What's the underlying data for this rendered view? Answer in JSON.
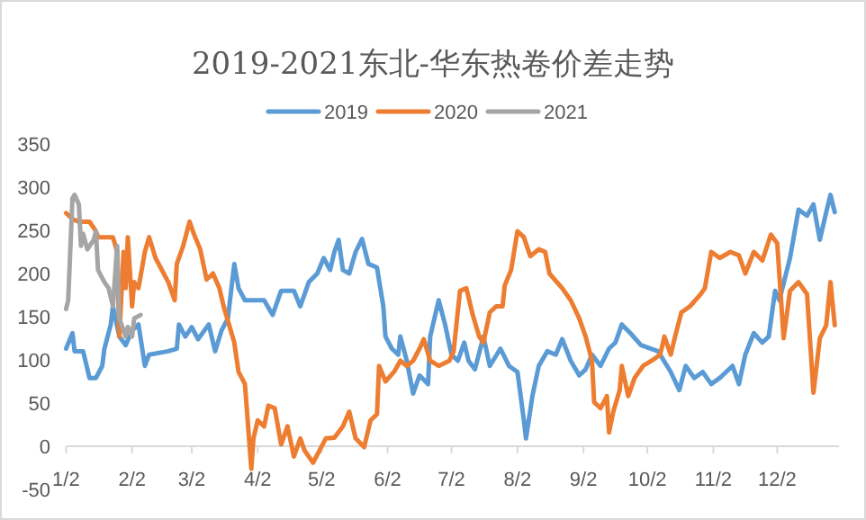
{
  "chart_data": {
    "type": "line",
    "title": "2019-2021东北-华东热卷价差走势",
    "legend": "top",
    "grid": false,
    "marker": "none",
    "line_style": "solid",
    "xlim": [
      "--01-02",
      "--12-31"
    ],
    "xticks": [
      {
        "value": "--01-02",
        "label": "1/2"
      },
      {
        "value": "--02-02",
        "label": "2/2"
      },
      {
        "value": "--03-02",
        "label": "3/2"
      },
      {
        "value": "--04-02",
        "label": "4/2"
      },
      {
        "value": "--05-02",
        "label": "5/2"
      },
      {
        "value": "--06-02",
        "label": "6/2"
      },
      {
        "value": "--07-02",
        "label": "7/2"
      },
      {
        "value": "--08-02",
        "label": "8/2"
      },
      {
        "value": "--09-02",
        "label": "9/2"
      },
      {
        "value": "--10-02",
        "label": "10/2"
      },
      {
        "value": "--11-02",
        "label": "11/2"
      },
      {
        "value": "--12-02",
        "label": "12/2"
      }
    ],
    "ylim": [
      -50,
      350
    ],
    "yticks": [
      -50,
      0,
      50,
      100,
      150,
      200,
      250,
      300,
      350
    ],
    "series": [
      {
        "name": "2019",
        "color": "#5b9bd5",
        "x": [
          "--01-02",
          "--01-05",
          "--01-06",
          "--01-10",
          "--01-13",
          "--01-16",
          "--01-19",
          "--01-20",
          "--01-23",
          "--01-24",
          "--01-27",
          "--01-30",
          "--02-02",
          "--02-05",
          "--02-08",
          "--02-10",
          "--02-19",
          "--02-23",
          "--02-24",
          "--02-27",
          "--03-02",
          "--03-05",
          "--03-10",
          "--03-13",
          "--03-16",
          "--03-19",
          "--03-22",
          "--03-24",
          "--03-27",
          "--04-05",
          "--04-09",
          "--04-13",
          "--04-19",
          "--04-22",
          "--04-26",
          "--04-30",
          "--05-03",
          "--05-06",
          "--05-08",
          "--05-10",
          "--05-12",
          "--05-15",
          "--05-18",
          "--05-21",
          "--05-24",
          "--05-28",
          "--05-31",
          "--06-01",
          "--06-04",
          "--06-07",
          "--06-08",
          "--06-11",
          "--06-14",
          "--06-17",
          "--06-21",
          "--06-22",
          "--06-26",
          "--06-29",
          "--07-02",
          "--07-05",
          "--07-08",
          "--07-10",
          "--07-13",
          "--07-17",
          "--07-20",
          "--07-25",
          "--07-29",
          "--08-02",
          "--08-05",
          "--08-06",
          "--08-09",
          "--08-12",
          "--08-16",
          "--08-20",
          "--08-23",
          "--08-27",
          "--08-31",
          "--09-03",
          "--09-06",
          "--09-10",
          "--09-14",
          "--09-17",
          "--09-20",
          "--09-24",
          "--09-29",
          "--10-07",
          "--10-13",
          "--10-17",
          "--10-20",
          "--10-24",
          "--10-28",
          "--11-01",
          "--11-05",
          "--11-11",
          "--11-14",
          "--11-17",
          "--11-21",
          "--11-25",
          "--11-28",
          "--12-01",
          "--12-03",
          "--12-08",
          "--12-12",
          "--12-16",
          "--12-19",
          "--12-22",
          "--12-25",
          "--12-27",
          "--12-29"
        ],
        "values": [
          113,
          131,
          110,
          110,
          79,
          79,
          93,
          113,
          141,
          162,
          127,
          117,
          134,
          141,
          93,
          106,
          110,
          113,
          141,
          127,
          138,
          124,
          141,
          110,
          134,
          148,
          211,
          183,
          169,
          169,
          152,
          180,
          180,
          162,
          190,
          200,
          218,
          204,
          225,
          239,
          204,
          200,
          225,
          240,
          211,
          207,
          162,
          127,
          113,
          106,
          127,
          99,
          61,
          82,
          72,
          127,
          169,
          141,
          106,
          99,
          120,
          99,
          89,
          127,
          93,
          113,
          93,
          86,
          30,
          9,
          58,
          93,
          110,
          106,
          124,
          99,
          82,
          89,
          106,
          93,
          113,
          120,
          141,
          131,
          117,
          110,
          86,
          65,
          93,
          79,
          86,
          72,
          79,
          93,
          72,
          106,
          131,
          120,
          127,
          180,
          169,
          218,
          274,
          267,
          280,
          239,
          271,
          291,
          271
        ]
      },
      {
        "name": "2020",
        "color": "#ed7d31",
        "x": [
          "--01-02",
          "--01-05",
          "--01-08",
          "--01-13",
          "--01-16",
          "--01-17",
          "--01-24",
          "--01-26",
          "--01-27",
          "--01-29",
          "--01-30",
          "--01-31",
          "--02-02",
          "--02-03",
          "--02-05",
          "--02-08",
          "--02-10",
          "--02-13",
          "--02-19",
          "--02-22",
          "--02-23",
          "--02-26",
          "--03-01",
          "--03-03",
          "--03-06",
          "--03-09",
          "--03-12",
          "--03-15",
          "--03-17",
          "--03-22",
          "--03-24",
          "--03-27",
          "--03-30",
          "--03-31",
          "--04-02",
          "--04-05",
          "--04-07",
          "--04-10",
          "--04-13",
          "--04-16",
          "--04-19",
          "--04-22",
          "--04-24",
          "--04-28",
          "--05-01",
          "--05-04",
          "--05-08",
          "--05-12",
          "--05-15",
          "--05-18",
          "--05-22",
          "--05-25",
          "--05-28",
          "--05-29",
          "--06-01",
          "--06-05",
          "--06-08",
          "--06-11",
          "--06-14",
          "--06-17",
          "--06-19",
          "--06-22",
          "--06-26",
          "--07-01",
          "--07-03",
          "--07-06",
          "--07-09",
          "--07-12",
          "--07-15",
          "--07-17",
          "--07-20",
          "--07-23",
          "--07-26",
          "--07-27",
          "--07-30",
          "--08-02",
          "--08-05",
          "--08-08",
          "--08-12",
          "--08-15",
          "--08-17",
          "--08-23",
          "--08-27",
          "--08-31",
          "--09-03",
          "--09-06",
          "--09-07",
          "--09-10",
          "--09-13",
          "--09-14",
          "--09-16",
          "--09-19",
          "--09-20",
          "--09-23",
          "--09-26",
          "--09-30",
          "--10-04",
          "--10-08",
          "--10-10",
          "--10-13",
          "--10-15",
          "--10-18",
          "--10-22",
          "--10-27",
          "--10-29",
          "--11-01",
          "--11-05",
          "--11-10",
          "--11-14",
          "--11-17",
          "--11-21",
          "--11-25",
          "--11-29",
          "--12-02",
          "--12-05",
          "--12-08",
          "--12-12",
          "--12-16",
          "--12-19",
          "--12-22",
          "--12-25",
          "--12-27",
          "--12-29"
        ],
        "values": [
          270,
          263,
          260,
          260,
          249,
          242,
          242,
          225,
          127,
          225,
          183,
          242,
          162,
          190,
          183,
          225,
          242,
          218,
          190,
          169,
          211,
          232,
          260,
          246,
          228,
          193,
          200,
          183,
          162,
          120,
          86,
          72,
          -26,
          9,
          30,
          23,
          47,
          44,
          2,
          23,
          -12,
          9,
          -5,
          -19,
          -5,
          9,
          10,
          23,
          40,
          9,
          -1,
          30,
          37,
          93,
          75,
          86,
          99,
          93,
          99,
          113,
          124,
          99,
          93,
          99,
          110,
          180,
          183,
          152,
          127,
          120,
          155,
          162,
          162,
          186,
          204,
          249,
          242,
          220,
          228,
          225,
          200,
          183,
          169,
          148,
          127,
          99,
          51,
          44,
          58,
          16,
          40,
          65,
          93,
          58,
          79,
          93,
          99,
          106,
          127,
          106,
          127,
          155,
          162,
          176,
          183,
          225,
          218,
          225,
          221,
          200,
          225,
          215,
          245,
          235,
          125,
          180,
          190,
          176,
          62,
          125,
          140,
          190,
          140
        ]
      },
      {
        "name": "2021",
        "color": "#a5a5a5",
        "x": [
          "--01-02",
          "--01-03",
          "--01-05",
          "--01-06",
          "--01-08",
          "--01-09",
          "--01-10",
          "--01-12",
          "--01-15",
          "--01-16",
          "--01-17",
          "--01-20",
          "--01-22",
          "--01-24",
          "--01-26",
          "--01-27",
          "--01-30",
          "--01-31",
          "--02-02",
          "--02-03",
          "--02-06"
        ],
        "values": [
          159,
          169,
          287,
          291,
          280,
          232,
          246,
          228,
          239,
          249,
          204,
          190,
          183,
          162,
          232,
          148,
          127,
          138,
          127,
          148,
          152
        ]
      }
    ]
  }
}
